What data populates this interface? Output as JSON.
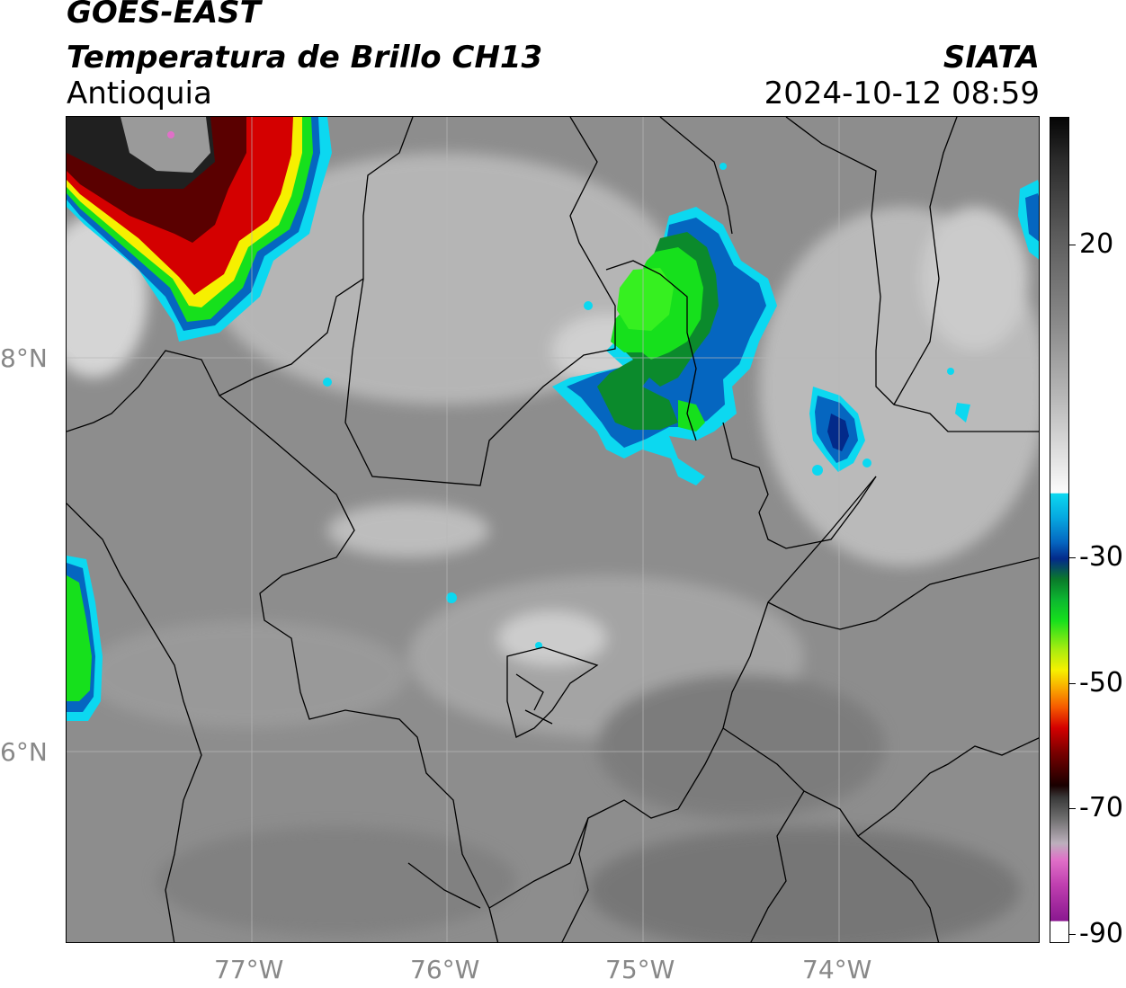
{
  "title": {
    "satellite": "GOES-EAST",
    "product": "Temperatura de Brillo CH13",
    "region": "Antioquia",
    "organization": "SIATA",
    "datetime": "2024-10-12 08:59"
  },
  "map": {
    "lon_labels": [
      "77°W",
      "76°W",
      "75°W",
      "74°W"
    ],
    "lat_labels": [
      "8°N",
      "6°N"
    ],
    "gridlines": true
  },
  "colorbar": {
    "tick_labels": [
      "20",
      "-30",
      "-50",
      "-70",
      "-90"
    ]
  },
  "colors": {
    "background_gray": "#8f8f8f",
    "cloud_cyan": "#0cd8f0",
    "cloud_blue": "#0566c0",
    "cloud_green": "#16e01c",
    "cloud_red": "#d40000",
    "cloud_black": "#050505",
    "cloud_magenta": "#e070c8"
  }
}
